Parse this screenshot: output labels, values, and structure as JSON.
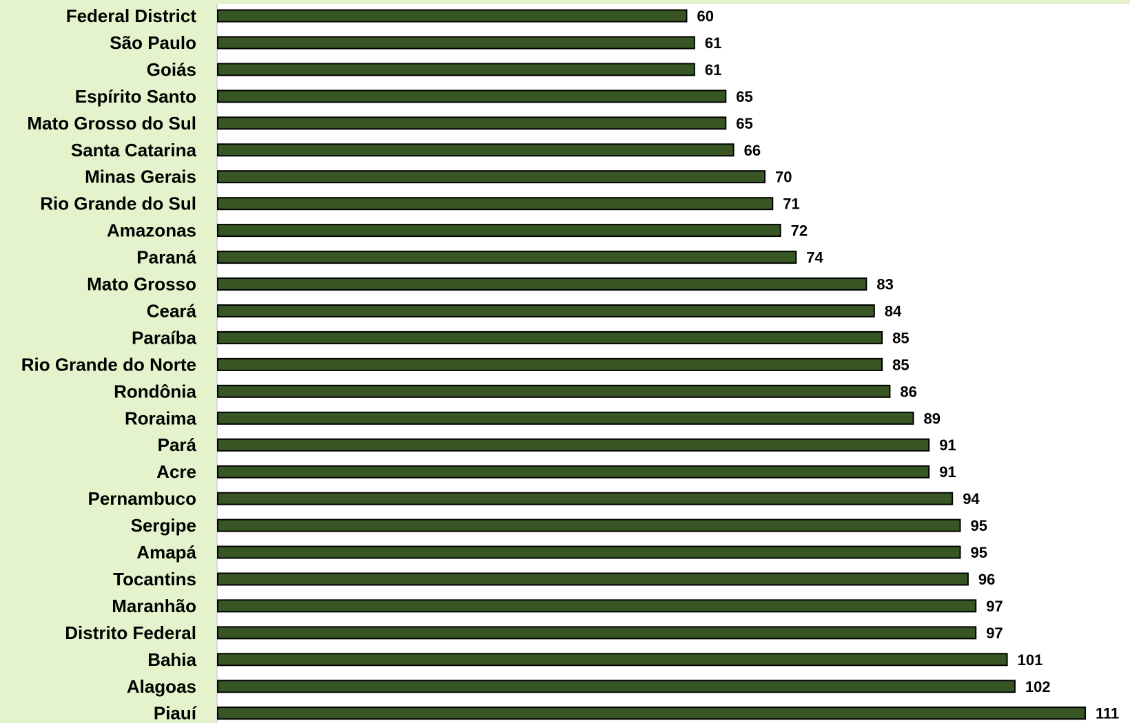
{
  "colors": {
    "label_panel_bg": "#e4f3cb",
    "bar_fill": "#375623",
    "bar_stroke": "#000000"
  },
  "chart_data": {
    "type": "bar",
    "orientation": "horizontal",
    "categories": [
      "Federal District",
      "São Paulo",
      "Goiás",
      "Espírito Santo",
      "Mato Grosso do Sul",
      "Santa Catarina",
      "Minas Gerais",
      "Rio Grande do Sul",
      "Amazonas",
      "Paraná",
      "Mato Grosso",
      "Ceará",
      "Paraíba",
      "Rio Grande do Norte",
      "Rondônia",
      "Roraima",
      "Pará",
      "Acre",
      "Pernambuco",
      "Sergipe",
      "Amapá",
      "Tocantins",
      "Maranhão",
      "Distrito Federal",
      "Bahia",
      "Alagoas",
      "Piauí"
    ],
    "values": [
      60,
      61,
      61,
      65,
      65,
      66,
      70,
      71,
      72,
      74,
      83,
      84,
      85,
      85,
      86,
      89,
      91,
      91,
      94,
      95,
      95,
      96,
      97,
      97,
      101,
      102,
      111
    ],
    "data_labels": true,
    "xlim": [
      0,
      111
    ],
    "grid": false,
    "legend": "none"
  }
}
